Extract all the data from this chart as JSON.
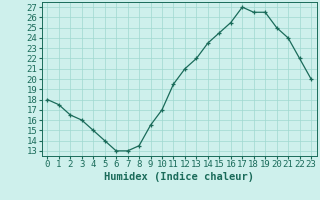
{
  "x": [
    0,
    1,
    2,
    3,
    4,
    5,
    6,
    7,
    8,
    9,
    10,
    11,
    12,
    13,
    14,
    15,
    16,
    17,
    18,
    19,
    20,
    21,
    22,
    23
  ],
  "y": [
    18,
    17.5,
    16.5,
    16,
    15,
    14,
    13,
    13,
    13.5,
    15.5,
    17,
    19.5,
    21,
    22,
    23.5,
    24.5,
    25.5,
    27,
    26.5,
    26.5,
    25,
    24,
    22,
    20
  ],
  "line_color": "#1a6b5a",
  "marker_color": "#1a6b5a",
  "bg_color": "#cef0ec",
  "grid_color": "#a0d8d0",
  "xlabel": "Humidex (Indice chaleur)",
  "xlim": [
    -0.5,
    23.5
  ],
  "ylim": [
    12.5,
    27.5
  ],
  "yticks": [
    13,
    14,
    15,
    16,
    17,
    18,
    19,
    20,
    21,
    22,
    23,
    24,
    25,
    26,
    27
  ],
  "xticks": [
    0,
    1,
    2,
    3,
    4,
    5,
    6,
    7,
    8,
    9,
    10,
    11,
    12,
    13,
    14,
    15,
    16,
    17,
    18,
    19,
    20,
    21,
    22,
    23
  ],
  "tick_font_size": 6.5,
  "label_font_size": 7.5
}
